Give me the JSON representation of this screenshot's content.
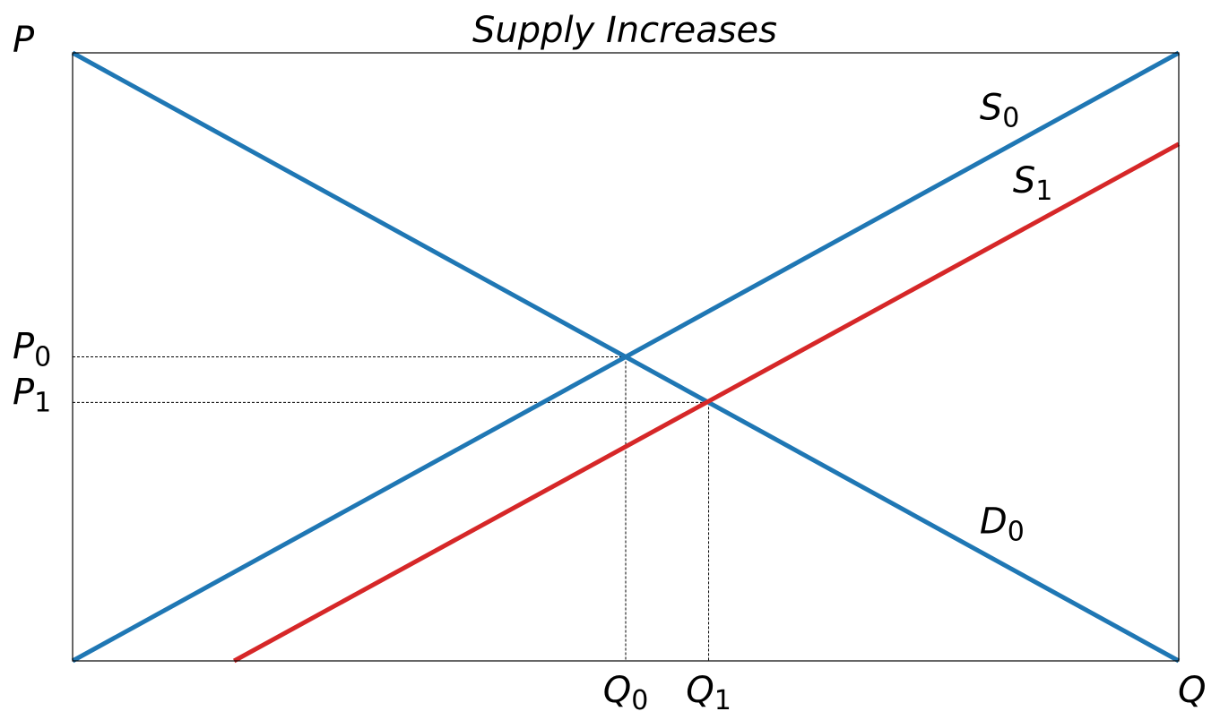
{
  "chart_data": {
    "type": "line",
    "title": "Supply Increases",
    "xlabel": "Q",
    "ylabel": "P",
    "xlim": [
      0,
      1
    ],
    "ylim": [
      0,
      1
    ],
    "grid": false,
    "legend": "none",
    "colors": {
      "supply_original": "#1f77b4",
      "supply_new": "#d62728",
      "demand": "#1f77b4",
      "guides": "#000000"
    },
    "series": [
      {
        "key": "D0",
        "label_main": "D",
        "label_sub": "0",
        "color": "#1f77b4",
        "x": [
          0,
          1
        ],
        "y": [
          1,
          0
        ],
        "label_at": [
          0.82,
          0.21
        ]
      },
      {
        "key": "S0",
        "label_main": "S",
        "label_sub": "0",
        "color": "#1f77b4",
        "x": [
          0,
          1
        ],
        "y": [
          0,
          1
        ],
        "label_at": [
          0.82,
          0.89
        ]
      },
      {
        "key": "S1",
        "label_main": "S",
        "label_sub": "1",
        "color": "#d62728",
        "x": [
          0.146,
          1
        ],
        "y": [
          0,
          0.85
        ],
        "label_at": [
          0.85,
          0.77
        ]
      }
    ],
    "equilibria": [
      {
        "key": "e0",
        "x": 0.5,
        "y": 0.5,
        "x_label_main": "Q",
        "x_label_sub": "0",
        "y_label_main": "P",
        "y_label_sub": "0"
      },
      {
        "key": "e1",
        "x": 0.575,
        "y": 0.425,
        "x_label_main": "Q",
        "x_label_sub": "1",
        "y_label_main": "P",
        "y_label_sub": "1"
      }
    ]
  }
}
